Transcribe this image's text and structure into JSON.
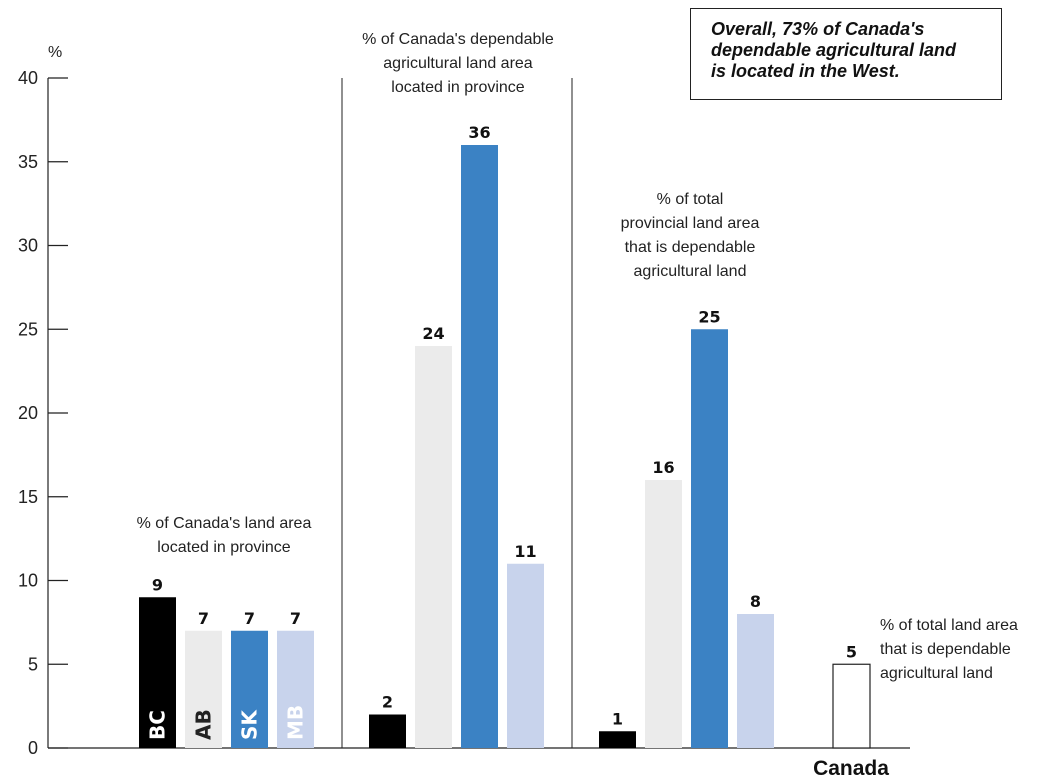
{
  "chart_data": {
    "type": "bar",
    "y_unit": "%",
    "ylim": [
      0,
      40
    ],
    "yticks": [
      0,
      5,
      10,
      15,
      20,
      25,
      30,
      35,
      40
    ],
    "grid": false,
    "colors": {
      "BC": "#000000",
      "AB": "#ebebeb",
      "SK": "#3b82c4",
      "MB": "#c8d3ec",
      "Canada": "#ffffff"
    },
    "groups": [
      {
        "label": [
          "% of Canada's land area",
          "located in province"
        ],
        "bars": [
          {
            "category": "BC",
            "value": 9,
            "label_color": "#ffffff"
          },
          {
            "category": "AB",
            "value": 7,
            "label_color": "#222222"
          },
          {
            "category": "SK",
            "value": 7,
            "label_color": "#ffffff"
          },
          {
            "category": "MB",
            "value": 7,
            "label_color": "#ffffff"
          }
        ]
      },
      {
        "label": [
          "% of Canada's dependable",
          "agricultural land area",
          "located in province"
        ],
        "bars": [
          {
            "category": "BC",
            "value": 2
          },
          {
            "category": "AB",
            "value": 24
          },
          {
            "category": "SK",
            "value": 36
          },
          {
            "category": "MB",
            "value": 11
          }
        ]
      },
      {
        "label": [
          "% of total",
          "provincial land area",
          "that is dependable",
          "agricultural land"
        ],
        "bars": [
          {
            "category": "BC",
            "value": 1
          },
          {
            "category": "AB",
            "value": 16
          },
          {
            "category": "SK",
            "value": 25
          },
          {
            "category": "MB",
            "value": 8
          }
        ]
      },
      {
        "name": "Canada",
        "label": [
          "% of total land area",
          "that is dependable",
          "agricultural land"
        ],
        "bars": [
          {
            "category": "Canada",
            "value": 5
          }
        ]
      }
    ]
  },
  "note": {
    "lines": [
      "Overall, 73% of Canada's",
      "dependable agricultural land",
      "is located in the West."
    ]
  }
}
